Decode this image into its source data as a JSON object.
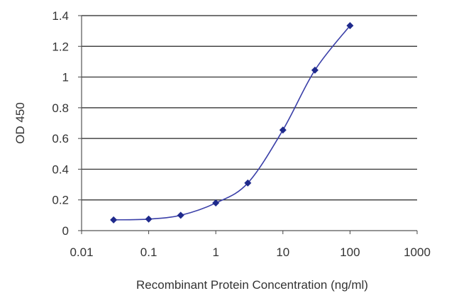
{
  "chart_data": {
    "type": "line",
    "title": "",
    "xlabel": "Recombinant Protein Concentration (ng/ml)",
    "ylabel": "OD 450",
    "x_scale": "log",
    "xlim": [
      0.01,
      1000
    ],
    "ylim": [
      0,
      1.4
    ],
    "x_ticks": [
      "0.01",
      "0.1",
      "1",
      "10",
      "100",
      "1000"
    ],
    "y_ticks": [
      "0",
      "0.2",
      "0.4",
      "0.6",
      "0.8",
      "1",
      "1.2",
      "1.4"
    ],
    "grid": "horizontal",
    "series": [
      {
        "x": [
          0.03,
          0.1,
          0.3,
          1,
          3,
          10,
          30,
          100
        ],
        "y": [
          0.07,
          0.075,
          0.1,
          0.18,
          0.31,
          0.655,
          1.045,
          1.335
        ]
      }
    ],
    "colors": {
      "line": "#3a3fa8",
      "marker": "#1f2a8c",
      "grid": "#222222",
      "plot_background": "#ffffff"
    }
  }
}
